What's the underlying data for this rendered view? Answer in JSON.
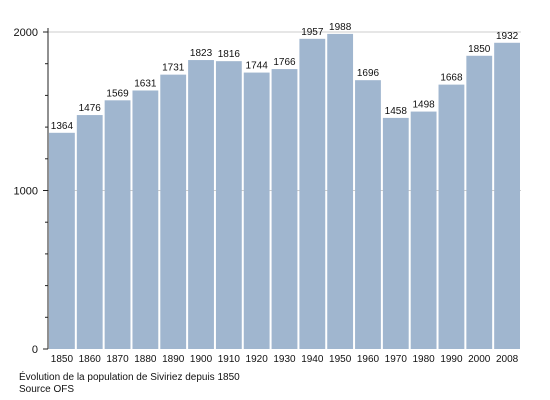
{
  "chart_data": {
    "type": "bar",
    "categories": [
      "1850",
      "1860",
      "1870",
      "1880",
      "1890",
      "1900",
      "1910",
      "1920",
      "1930",
      "1940",
      "1950",
      "1960",
      "1970",
      "1980",
      "1990",
      "2000",
      "2008"
    ],
    "values": [
      1364,
      1476,
      1569,
      1631,
      1731,
      1823,
      1816,
      1744,
      1766,
      1957,
      1988,
      1696,
      1458,
      1498,
      1668,
      1850,
      1932
    ],
    "ylim": [
      0,
      2000
    ],
    "yticks": [
      0,
      1000,
      2000
    ],
    "title": "",
    "xlabel": "",
    "ylabel": "",
    "grid": true,
    "bar_color": "#a0b6cf",
    "grid_color": "#cccccc"
  },
  "caption": {
    "title": "Évolution de la population de Siviriez depuis 1850",
    "source": "Source OFS"
  }
}
